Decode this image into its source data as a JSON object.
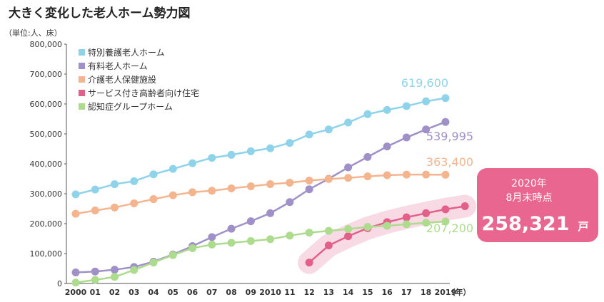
{
  "title": "大きく変化した老人ホーム勢力図",
  "unit_label": "（単位:人、床）",
  "callout": {
    "line1": "2020年",
    "line2": "8月末時点",
    "value": "258,321",
    "unit": "戸"
  },
  "chart_data": {
    "type": "line",
    "xlabel": "（年）",
    "ylim": [
      0,
      800000
    ],
    "yticks": [
      0,
      100000,
      200000,
      300000,
      400000,
      500000,
      600000,
      700000,
      800000
    ],
    "ytick_labels": [
      "0",
      "100,000",
      "200,000",
      "300,000",
      "400,000",
      "500,000",
      "600,000",
      "700,000",
      "800,000"
    ],
    "x": [
      2000,
      2001,
      2002,
      2003,
      2004,
      2005,
      2006,
      2007,
      2008,
      2009,
      2010,
      2011,
      2012,
      2013,
      2014,
      2015,
      2016,
      2017,
      2018,
      2019
    ],
    "xtick_labels": [
      "2000",
      "01",
      "02",
      "03",
      "04",
      "05",
      "06",
      "07",
      "08",
      "09",
      "2010",
      "11",
      "12",
      "13",
      "14",
      "15",
      "16",
      "17",
      "18",
      "2019"
    ],
    "legend_position": "top-left",
    "grid": false,
    "series": [
      {
        "name": "特別養護老人ホーム",
        "color": "#8fd3ea",
        "x": [
          2000,
          2001,
          2002,
          2003,
          2004,
          2005,
          2006,
          2007,
          2008,
          2009,
          2010,
          2011,
          2012,
          2013,
          2014,
          2015,
          2016,
          2017,
          2018,
          2019
        ],
        "values": [
          298000,
          314000,
          332000,
          342000,
          365000,
          383000,
          402000,
          420000,
          430000,
          442000,
          452000,
          470000,
          498000,
          515000,
          538000,
          566000,
          580000,
          593000,
          609000,
          619600
        ],
        "end_label": "619,600"
      },
      {
        "name": "有料老人ホーム",
        "color": "#a090c8",
        "x": [
          2000,
          2001,
          2002,
          2003,
          2004,
          2005,
          2006,
          2007,
          2008,
          2009,
          2010,
          2011,
          2012,
          2013,
          2014,
          2015,
          2016,
          2017,
          2018,
          2019
        ],
        "values": [
          37000,
          40000,
          46000,
          55000,
          73000,
          97000,
          125000,
          155000,
          183000,
          208000,
          235000,
          272000,
          315000,
          350000,
          388000,
          423000,
          458000,
          488000,
          515000,
          539995
        ],
        "end_label": "539,995"
      },
      {
        "name": "介護老人保健施設",
        "color": "#f4b48e",
        "x": [
          2000,
          2001,
          2002,
          2003,
          2004,
          2005,
          2006,
          2007,
          2008,
          2009,
          2010,
          2011,
          2012,
          2013,
          2014,
          2015,
          2016,
          2017,
          2018,
          2019
        ],
        "values": [
          233000,
          244000,
          254000,
          268000,
          282000,
          295000,
          305000,
          310000,
          318000,
          325000,
          332000,
          337000,
          344000,
          349000,
          353000,
          358000,
          362000,
          364000,
          364000,
          363400
        ],
        "end_label": "363,400"
      },
      {
        "name": "サービス付き高齢者向け住宅",
        "color": "#e3608a",
        "x": [
          2012,
          2013,
          2014,
          2015,
          2016,
          2017,
          2018,
          2019,
          2020
        ],
        "values": [
          70000,
          127000,
          158000,
          185000,
          205000,
          221000,
          235000,
          248000,
          258321
        ],
        "end_label": ""
      },
      {
        "name": "認知症グループホーム",
        "color": "#addc8e",
        "x": [
          2000,
          2001,
          2002,
          2003,
          2004,
          2005,
          2006,
          2007,
          2008,
          2009,
          2010,
          2011,
          2012,
          2013,
          2014,
          2015,
          2016,
          2017,
          2018,
          2019
        ],
        "values": [
          3000,
          12000,
          22000,
          45000,
          70000,
          95000,
          118000,
          130000,
          136000,
          142000,
          148000,
          160000,
          170000,
          176000,
          182000,
          189000,
          193000,
          198000,
          203000,
          207200
        ],
        "end_label": "207,200"
      }
    ]
  }
}
